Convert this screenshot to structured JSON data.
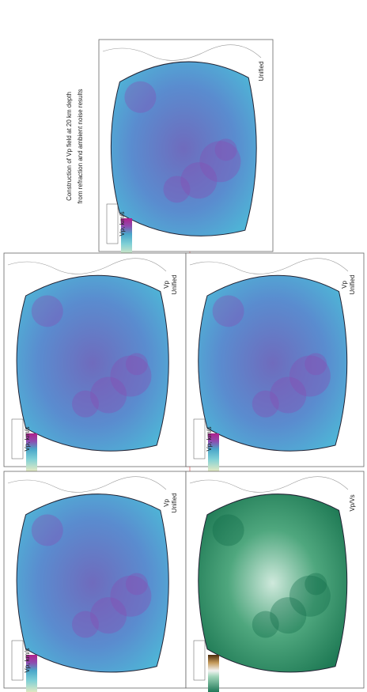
{
  "caption": {
    "lines": [
      "Construction of Vp field at 20 km depth",
      "from refraction and ambient noise results"
    ]
  },
  "panels": [
    {
      "labels": [
        "Unified"
      ],
      "colorbar_label": "Vp, km/s"
    },
    {
      "labels": [
        "Unified",
        "Vp"
      ],
      "colorbar_label": "Vp, km/s"
    },
    {
      "labels": [
        "Unified",
        "Vp"
      ],
      "colorbar_label": "Vp, km/s"
    },
    {
      "labels": [
        "Unified",
        "Vp"
      ],
      "colorbar_label": "Vp, km/s"
    },
    {
      "labels": [
        "Vp/Vs"
      ]
    }
  ]
}
